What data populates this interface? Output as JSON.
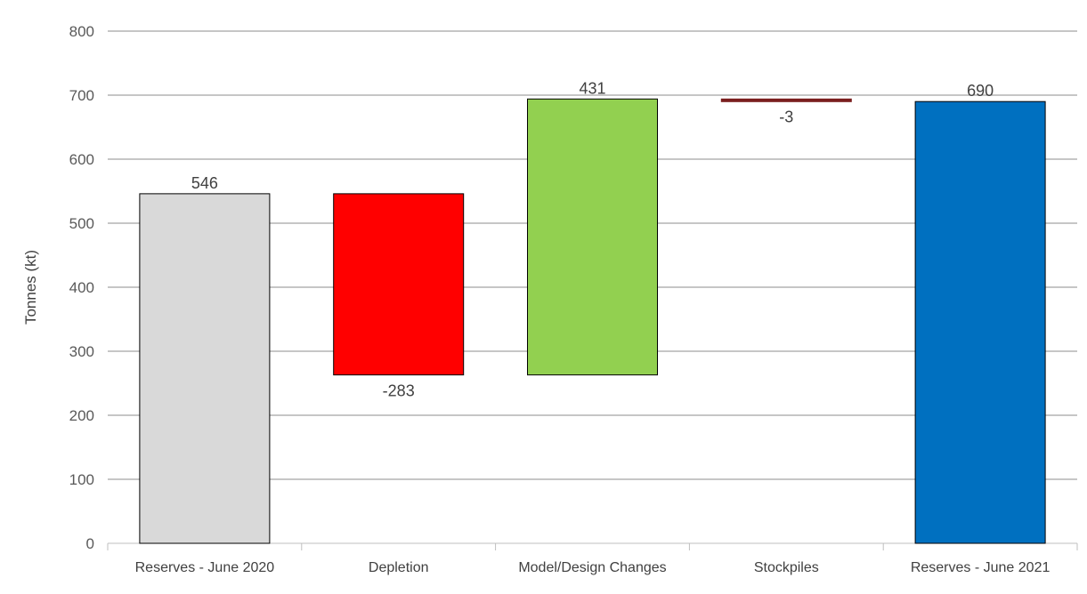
{
  "chart_data": {
    "type": "waterfall",
    "ylabel": "Tonnes (kt)",
    "ylim": [
      0,
      800
    ],
    "yticks": [
      0,
      100,
      200,
      300,
      400,
      500,
      600,
      700,
      800
    ],
    "grid": true,
    "categories": [
      "Reserves - June 2020",
      "Depletion",
      "Model/Design Changes",
      "Stockpiles",
      "Reserves - June 2021"
    ],
    "bars": [
      {
        "category": "Reserves - June 2020",
        "kind": "total",
        "start": 0,
        "end": 546,
        "label": "546",
        "color": "#d9d9d9"
      },
      {
        "category": "Depletion",
        "kind": "decrease",
        "start": 546,
        "end": 263,
        "label": "-283",
        "color": "#ff0000"
      },
      {
        "category": "Model/Design Changes",
        "kind": "increase",
        "start": 263,
        "end": 694,
        "label": "431",
        "color": "#92d050"
      },
      {
        "category": "Stockpiles",
        "kind": "decrease",
        "start": 694,
        "end": 691,
        "label": "-3",
        "color": "#7b1f1f"
      },
      {
        "category": "Reserves - June 2021",
        "kind": "total",
        "start": 0,
        "end": 690,
        "label": "690",
        "color": "#0070c0"
      }
    ]
  }
}
